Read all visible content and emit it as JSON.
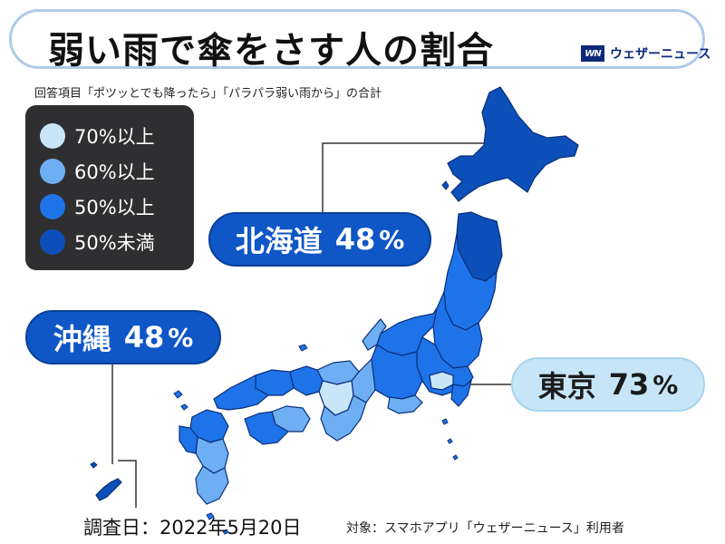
{
  "title": "弱い雨で傘をさす人の割合",
  "brand": {
    "logo_text": "WN",
    "name": "ウェザーニュース"
  },
  "subtitle": "回答項目「ポツッとでも降ったら」「パラパラ弱い雨から」の合計",
  "legend": {
    "items": [
      {
        "label": "70%以上",
        "color": "#c9e6f8"
      },
      {
        "label": "60%以上",
        "color": "#6eaef2"
      },
      {
        "label": "50%以上",
        "color": "#1e73e8"
      },
      {
        "label": "50%未満",
        "color": "#0d4fb8"
      }
    ]
  },
  "callouts": {
    "hokkaido": {
      "name": "北海道",
      "value": "48",
      "unit": "%"
    },
    "okinawa": {
      "name": "沖縄",
      "value": "48",
      "unit": "%"
    },
    "tokyo": {
      "name": "東京",
      "value": "73",
      "unit": "%"
    }
  },
  "footer": {
    "survey_date": "調査日：2022年5月20日",
    "target": "対象：スマホアプリ「ウェザーニュース」利用者"
  },
  "colors": {
    "map_stroke": "#0a2f7a",
    "leader_line": "#333333",
    "title_border": "#aecbe8"
  }
}
